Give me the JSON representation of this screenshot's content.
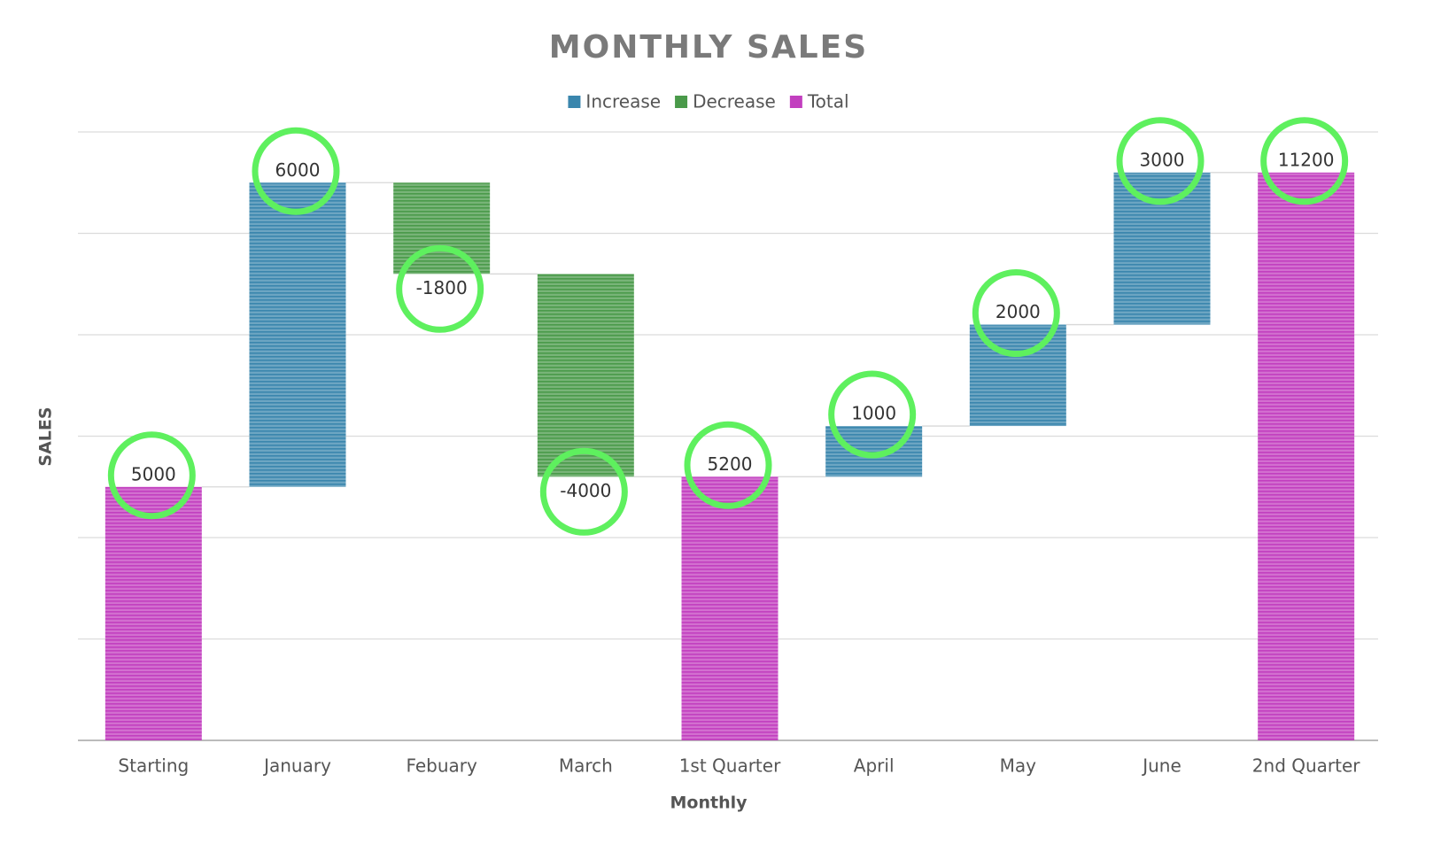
{
  "chart_data": {
    "type": "waterfall",
    "title": "MONTHLY SALES",
    "x_label": "Monthly",
    "y_label": "SALES",
    "categories": [
      "Starting",
      "January",
      "Febuary",
      "March",
      "1st Quarter",
      "April",
      "May",
      "June",
      "2nd Quarter"
    ],
    "series": [
      {
        "name": "Increase",
        "color": "#3a86ad",
        "values": [
          null,
          6000,
          null,
          null,
          null,
          1000,
          2000,
          3000,
          null
        ]
      },
      {
        "name": "Decrease",
        "color": "#4a9a4a",
        "values": [
          null,
          null,
          -1800,
          -4000,
          null,
          null,
          null,
          null,
          null
        ]
      },
      {
        "name": "Total",
        "color": "#c23fbf",
        "values": [
          5000,
          null,
          null,
          null,
          5200,
          null,
          null,
          null,
          11200
        ]
      }
    ],
    "ylim": [
      0,
      12000
    ],
    "yticks": [
      0,
      2000,
      4000,
      6000,
      8000,
      10000,
      12000
    ],
    "grid": true,
    "legend_position": "top"
  }
}
